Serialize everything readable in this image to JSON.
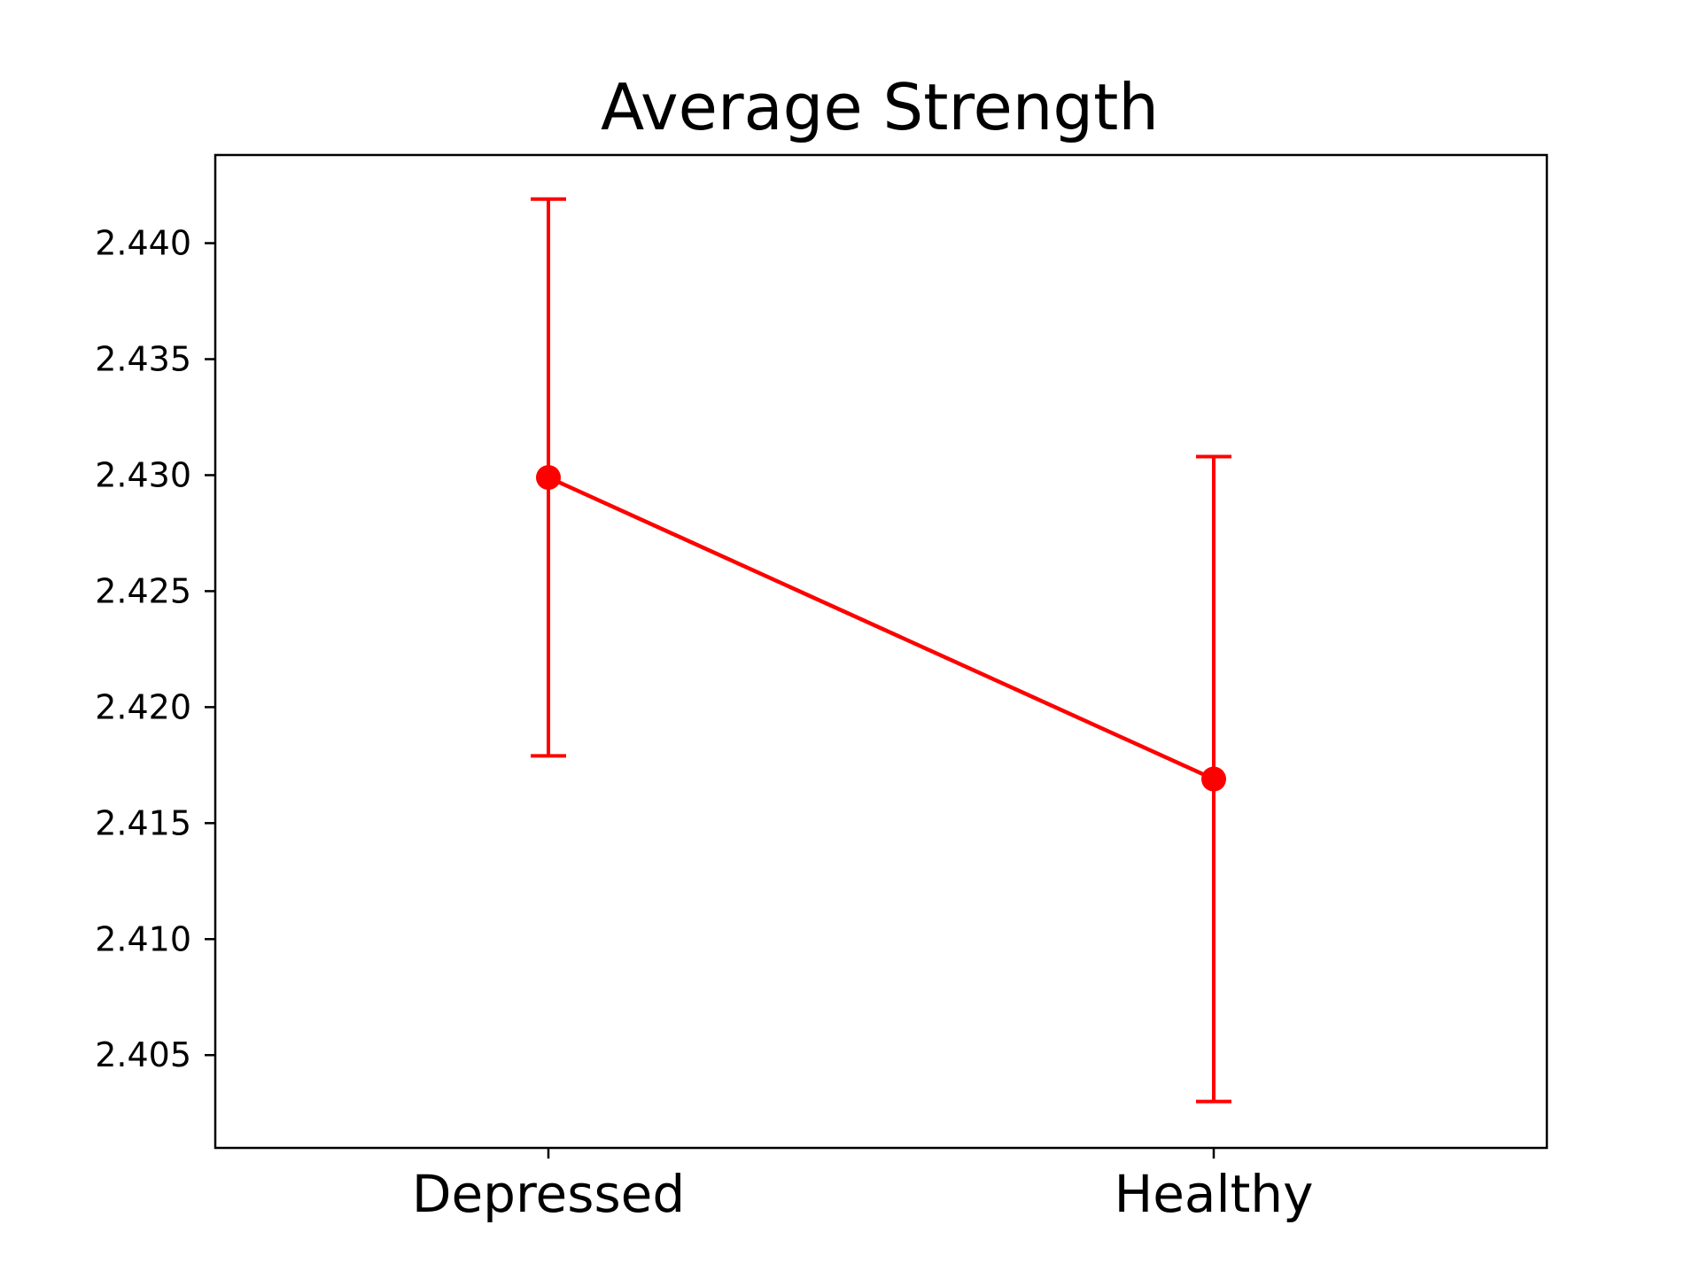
{
  "chart_data": {
    "type": "line",
    "title": "Average Strength",
    "xlabel": "",
    "ylabel": "",
    "categories": [
      "Depressed",
      "Healthy"
    ],
    "series": [
      {
        "values": [
          2.4299,
          2.4169
        ],
        "error_low": [
          2.4179,
          2.403
        ],
        "error_high": [
          2.4419,
          2.4308
        ],
        "color": "#ff0000"
      }
    ],
    "yticks": [
      "2.405",
      "2.410",
      "2.415",
      "2.420",
      "2.425",
      "2.430",
      "2.435",
      "2.440"
    ],
    "ylim": [
      2.401,
      2.4438
    ],
    "grid": false,
    "legend": "none"
  }
}
